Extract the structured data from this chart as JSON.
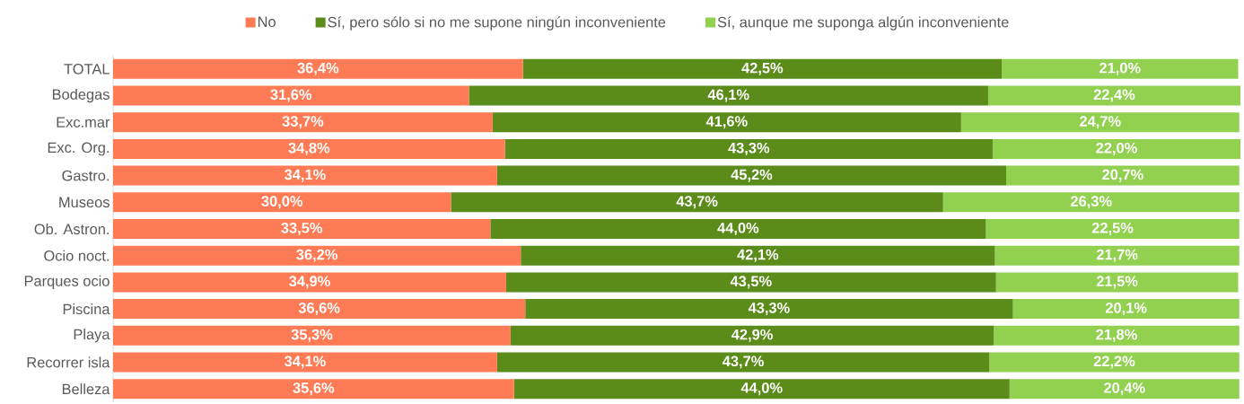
{
  "chart_data": {
    "type": "bar",
    "orientation": "horizontal",
    "stacked": true,
    "legend": "top",
    "categories": [
      "TOTAL",
      "Bodegas",
      "Exc.mar",
      "Exc. Org.",
      "Gastro.",
      "Museos",
      "Ob. Astron.",
      "Ocio noct.",
      "Parques ocio",
      "Piscina",
      "Playa",
      "Recorrer isla",
      "Belleza"
    ],
    "series": [
      {
        "name": "No",
        "color": "#ff7b55",
        "values": [
          36.4,
          31.6,
          33.7,
          34.8,
          34.1,
          30.0,
          33.5,
          36.2,
          34.9,
          36.6,
          35.3,
          34.1,
          35.6
        ],
        "value_labels": [
          "36,4%",
          "31,6%",
          "33,7%",
          "34,8%",
          "34,1%",
          "30,0%",
          "33,5%",
          "36,2%",
          "34,9%",
          "36,6%",
          "35,3%",
          "34,1%",
          "35,6%"
        ]
      },
      {
        "name": "Sí, pero sólo si no me supone ningún inconveniente",
        "color": "#5b8c1a",
        "values": [
          42.5,
          46.1,
          41.6,
          43.3,
          45.2,
          43.7,
          44.0,
          42.1,
          43.5,
          43.3,
          42.9,
          43.7,
          44.0
        ],
        "value_labels": [
          "42,5%",
          "46,1%",
          "41,6%",
          "43,3%",
          "45,2%",
          "43,7%",
          "44,0%",
          "42,1%",
          "43,5%",
          "43,3%",
          "42,9%",
          "43,7%",
          "44,0%"
        ]
      },
      {
        "name": "Sí, aunque me suponga algún inconveniente",
        "color": "#92d050",
        "values": [
          21.0,
          22.4,
          24.7,
          22.0,
          20.7,
          26.3,
          22.5,
          21.7,
          21.5,
          20.1,
          21.8,
          22.2,
          20.4
        ],
        "value_labels": [
          "21,0%",
          "22,4%",
          "24,7%",
          "22,0%",
          "20,7%",
          "26,3%",
          "22,5%",
          "21,7%",
          "21,5%",
          "20,1%",
          "21,8%",
          "22,2%",
          "20,4%"
        ]
      }
    ]
  }
}
